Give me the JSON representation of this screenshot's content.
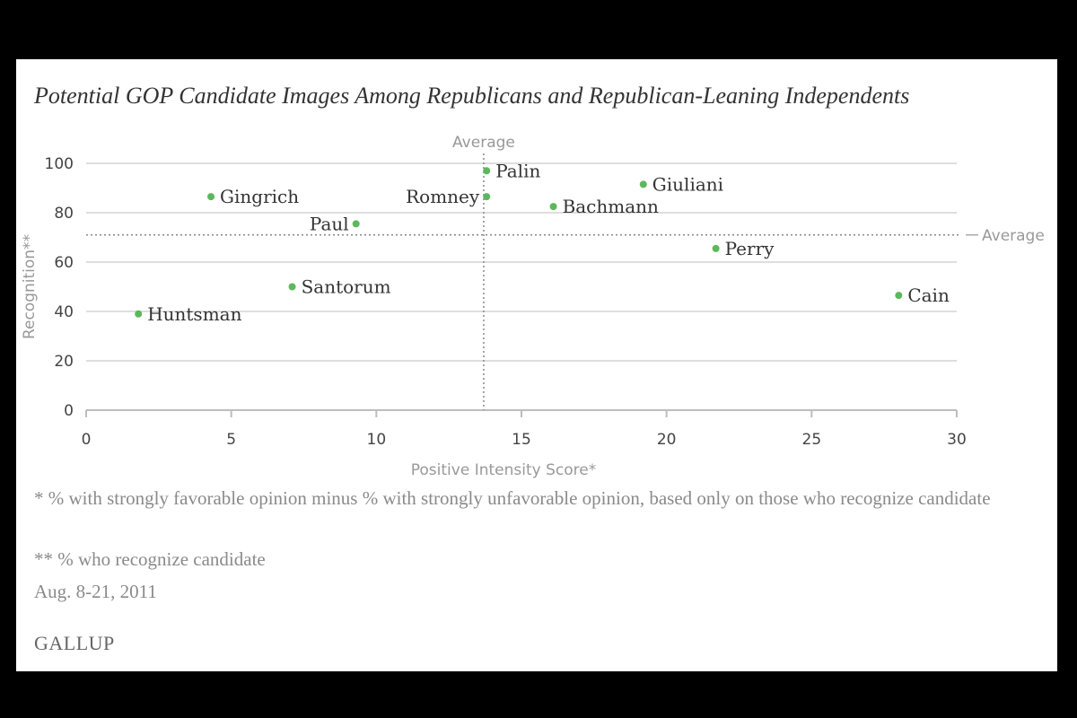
{
  "chart_data": {
    "type": "scatter",
    "title": "Potential GOP Candidate Images Among Republicans and Republican-Leaning Independents",
    "xlabel": "Positive Intensity Score*",
    "ylabel": "Recognition**",
    "xlim": [
      0,
      30
    ],
    "ylim": [
      0,
      100
    ],
    "xticks": [
      0,
      5,
      10,
      15,
      20,
      25,
      30
    ],
    "yticks": [
      0,
      20,
      40,
      60,
      80,
      100
    ],
    "grid": "horizontal",
    "point_color": "#5cb85c",
    "series": [
      {
        "points": [
          {
            "label": "Palin",
            "x": 13.8,
            "y": 97,
            "label_side": "right"
          },
          {
            "label": "Giuliani",
            "x": 19.2,
            "y": 91.5,
            "label_side": "right"
          },
          {
            "label": "Gingrich",
            "x": 4.3,
            "y": 86.5,
            "label_side": "right"
          },
          {
            "label": "Romney",
            "x": 13.8,
            "y": 86.5,
            "label_side": "left"
          },
          {
            "label": "Bachmann",
            "x": 16.1,
            "y": 82.5,
            "label_side": "right"
          },
          {
            "label": "Paul",
            "x": 9.3,
            "y": 75.5,
            "label_side": "left"
          },
          {
            "label": "Perry",
            "x": 21.7,
            "y": 65.5,
            "label_side": "right"
          },
          {
            "label": "Santorum",
            "x": 7.1,
            "y": 50,
            "label_side": "right"
          },
          {
            "label": "Cain",
            "x": 28,
            "y": 46.5,
            "label_side": "right"
          },
          {
            "label": "Huntsman",
            "x": 1.8,
            "y": 39,
            "label_side": "right"
          }
        ]
      }
    ],
    "reference_lines": {
      "x_average": {
        "value": 13.7,
        "label": "Average"
      },
      "y_average": {
        "value": 71,
        "label": "Average"
      }
    }
  },
  "footnotes": {
    "note1": "* % with strongly favorable opinion minus % with strongly unfavorable opinion, based only on those who recognize candidate",
    "note2": "** % who recognize candidate",
    "date": "Aug. 8-21, 2011"
  },
  "brand": "GALLUP"
}
